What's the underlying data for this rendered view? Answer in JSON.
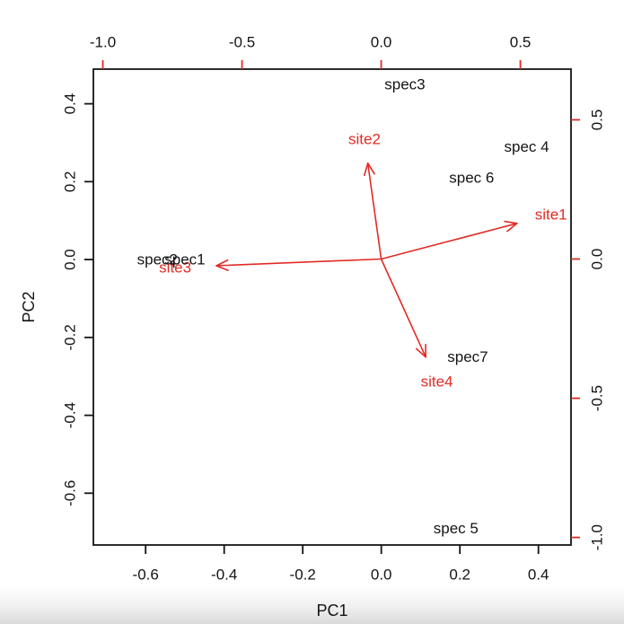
{
  "colors": {
    "background": "#ffffff",
    "black_text": "#141414",
    "red": "#e22b25"
  },
  "chart_data": {
    "type": "scatter",
    "subtype": "pca-biplot",
    "title": "",
    "xlabel": "PC1",
    "ylabel": "PC2",
    "grid": false,
    "legend": "none",
    "species_series": {
      "name": "species-scores",
      "color_key": "black_text",
      "points": [
        {
          "label": "spec2",
          "x": -0.57,
          "y": 0.0
        },
        {
          "label": "spec1",
          "x": -0.5,
          "y": 0.0
        },
        {
          "label": "spec3",
          "x": 0.06,
          "y": 0.45
        },
        {
          "label": "spec 4",
          "x": 0.37,
          "y": 0.29
        },
        {
          "label": "spec 6",
          "x": 0.23,
          "y": 0.21
        },
        {
          "label": "spec7",
          "x": 0.22,
          "y": -0.25
        },
        {
          "label": "spec 5",
          "x": 0.19,
          "y": -0.69
        }
      ]
    },
    "site_series": {
      "name": "site-loadings",
      "color_key": "red",
      "arrow_tip_fraction": 0.8,
      "points": [
        {
          "label": "site1",
          "x": 0.61,
          "y": 0.16
        },
        {
          "label": "site2",
          "x": -0.06,
          "y": 0.43
        },
        {
          "label": "site3",
          "x": -0.74,
          "y": -0.03
        },
        {
          "label": "site4",
          "x": 0.2,
          "y": -0.44
        }
      ]
    },
    "axes": {
      "bottom": {
        "label": "PC1",
        "scale": "black",
        "ticks": [
          -0.6,
          -0.4,
          -0.2,
          0.0,
          0.2,
          0.4
        ]
      },
      "left": {
        "label": "PC2",
        "scale": "black",
        "ticks": [
          0.4,
          0.2,
          0.0,
          -0.2,
          -0.4,
          -0.6
        ]
      },
      "top": {
        "scale": "red",
        "ticks": [
          -1.0,
          -0.5,
          0.0,
          0.5
        ]
      },
      "right": {
        "scale": "red",
        "ticks": [
          0.5,
          0.0,
          -0.5,
          -1.0
        ]
      },
      "black_xlim": [
        -0.733,
        0.483
      ],
      "black_ylim": [
        -0.733,
        0.489
      ],
      "red_xlim": [
        -1.034,
        0.682
      ],
      "red_ylim": [
        -1.027,
        0.682
      ]
    }
  }
}
